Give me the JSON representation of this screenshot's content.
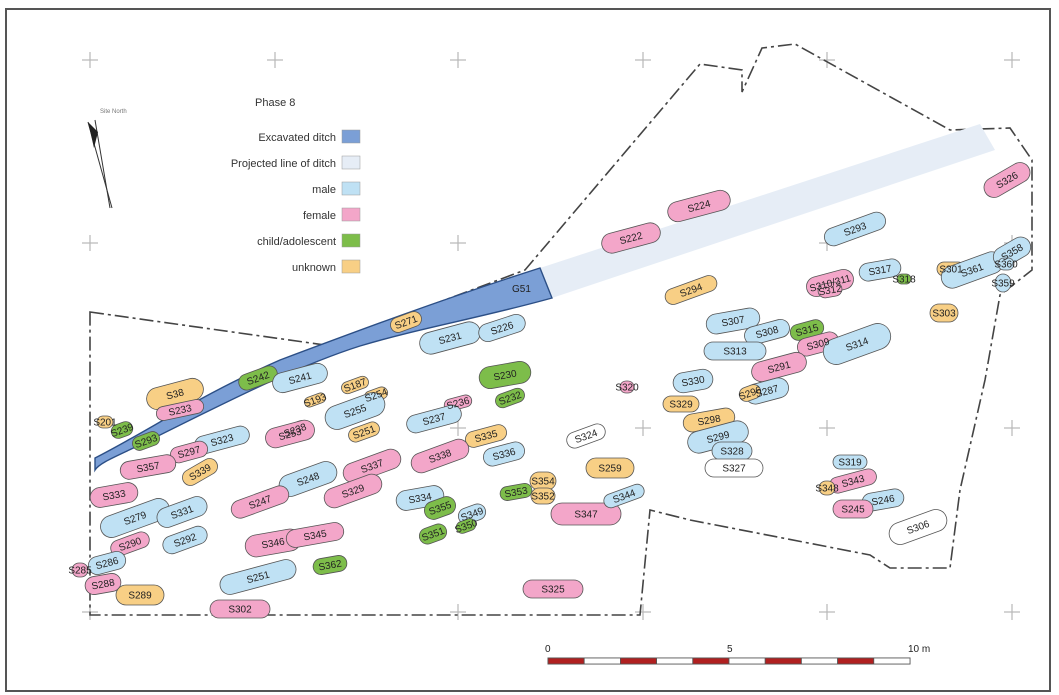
{
  "legend": {
    "title": "Phase 8",
    "items": [
      {
        "label": "Excavated ditch",
        "color": "#7b9fd6"
      },
      {
        "label": "Projected line of ditch",
        "color": "#e6edf6"
      },
      {
        "label": "male",
        "color": "#bfe1f4"
      },
      {
        "label": "female",
        "color": "#f3a6c9"
      },
      {
        "label": "child/adolescent",
        "color": "#7dbd4a"
      },
      {
        "label": "unknown",
        "color": "#f8cf85"
      }
    ]
  },
  "north": {
    "label": "Site North",
    "icon": "north-arrow-icon"
  },
  "ditch_label": "G51",
  "scale": {
    "labels": [
      "0",
      "5",
      "10 m"
    ],
    "colors": [
      "#b02020",
      "#ffffff"
    ]
  },
  "graves": [
    {
      "id": "S201",
      "sex": "unknown"
    },
    {
      "id": "S239",
      "sex": "child/adolescent"
    },
    {
      "id": "S38",
      "sex": "unknown"
    },
    {
      "id": "S233",
      "sex": "female"
    },
    {
      "id": "S242",
      "sex": "child/adolescent"
    },
    {
      "id": "S241",
      "sex": "male"
    },
    {
      "id": "S271",
      "sex": "unknown"
    },
    {
      "id": "S231",
      "sex": "male"
    },
    {
      "id": "S226",
      "sex": "male"
    },
    {
      "id": "S230",
      "sex": "child/adolescent"
    },
    {
      "id": "S187",
      "sex": "unknown"
    },
    {
      "id": "S193",
      "sex": "unknown"
    },
    {
      "id": "S254",
      "sex": "unknown"
    },
    {
      "id": "S255",
      "sex": "male"
    },
    {
      "id": "S236",
      "sex": "female"
    },
    {
      "id": "S232",
      "sex": "child/adolescent"
    },
    {
      "id": "S237",
      "sex": "male"
    },
    {
      "id": "S335",
      "sex": "unknown"
    },
    {
      "id": "S238",
      "sex": "unknown"
    },
    {
      "id": "S253",
      "sex": "female"
    },
    {
      "id": "S251",
      "sex": "unknown"
    },
    {
      "id": "S323",
      "sex": "male"
    },
    {
      "id": "S293",
      "sex": "child/adolescent"
    },
    {
      "id": "S297",
      "sex": "female"
    },
    {
      "id": "S357",
      "sex": "female"
    },
    {
      "id": "S339",
      "sex": "unknown"
    },
    {
      "id": "S248",
      "sex": "male"
    },
    {
      "id": "S337",
      "sex": "female"
    },
    {
      "id": "S338",
      "sex": "female"
    },
    {
      "id": "S336",
      "sex": "male"
    },
    {
      "id": "S334",
      "sex": "male"
    },
    {
      "id": "S247",
      "sex": "female"
    },
    {
      "id": "S329",
      "sex": "female"
    },
    {
      "id": "S279",
      "sex": "male"
    },
    {
      "id": "S331",
      "sex": "male"
    },
    {
      "id": "S333",
      "sex": "female"
    },
    {
      "id": "S355",
      "sex": "child/adolescent"
    },
    {
      "id": "S349",
      "sex": "male"
    },
    {
      "id": "S353",
      "sex": "child/adolescent"
    },
    {
      "id": "S354",
      "sex": "unknown"
    },
    {
      "id": "S352",
      "sex": "unknown"
    },
    {
      "id": "S292",
      "sex": "male"
    },
    {
      "id": "S290",
      "sex": "female"
    },
    {
      "id": "S346",
      "sex": "female"
    },
    {
      "id": "S345",
      "sex": "female"
    },
    {
      "id": "S350",
      "sex": "child/adolescent"
    },
    {
      "id": "S351",
      "sex": "child/adolescent"
    },
    {
      "id": "S362",
      "sex": "child/adolescent"
    },
    {
      "id": "S285",
      "sex": "female"
    },
    {
      "id": "S286",
      "sex": "male"
    },
    {
      "id": "S288",
      "sex": "female"
    },
    {
      "id": "S289",
      "sex": "unknown"
    },
    {
      "id": "S251b",
      "label": "S251",
      "sex": "male"
    },
    {
      "id": "S302",
      "sex": "female"
    },
    {
      "id": "S320",
      "sex": "female"
    },
    {
      "id": "S324",
      "sex": "male"
    },
    {
      "id": "S259",
      "sex": "unknown"
    },
    {
      "id": "S347",
      "sex": "female"
    },
    {
      "id": "S344",
      "sex": "male"
    },
    {
      "id": "S325",
      "sex": "female"
    },
    {
      "id": "S222",
      "sex": "female"
    },
    {
      "id": "S224",
      "sex": "female"
    },
    {
      "id": "S294",
      "sex": "unknown"
    },
    {
      "id": "S307",
      "sex": "male"
    },
    {
      "id": "S308",
      "sex": "male"
    },
    {
      "id": "S315",
      "sex": "child/adolescent"
    },
    {
      "id": "S313",
      "sex": "male"
    },
    {
      "id": "S309",
      "sex": "female"
    },
    {
      "id": "S314",
      "sex": "male"
    },
    {
      "id": "S291",
      "sex": "female"
    },
    {
      "id": "S330",
      "sex": "male"
    },
    {
      "id": "S287",
      "sex": "male"
    },
    {
      "id": "S296",
      "sex": "unknown"
    },
    {
      "id": "S329b",
      "label": "S329",
      "sex": "unknown"
    },
    {
      "id": "S298",
      "sex": "unknown"
    },
    {
      "id": "S299",
      "sex": "male"
    },
    {
      "id": "S328",
      "sex": "male"
    },
    {
      "id": "S327",
      "sex": "male"
    },
    {
      "id": "S293b",
      "label": "S293",
      "sex": "male"
    },
    {
      "id": "S310/311",
      "sex": "female"
    },
    {
      "id": "S312",
      "sex": "female"
    },
    {
      "id": "S317",
      "sex": "male"
    },
    {
      "id": "S318",
      "sex": "child/adolescent"
    },
    {
      "id": "S301",
      "sex": "unknown"
    },
    {
      "id": "S361",
      "sex": "male"
    },
    {
      "id": "S358",
      "sex": "male"
    },
    {
      "id": "S360",
      "sex": "male"
    },
    {
      "id": "S359",
      "sex": "male"
    },
    {
      "id": "S303",
      "sex": "unknown"
    },
    {
      "id": "S326",
      "sex": "female"
    },
    {
      "id": "S319",
      "sex": "male"
    },
    {
      "id": "S343",
      "sex": "female"
    },
    {
      "id": "S348",
      "sex": "unknown"
    },
    {
      "id": "S246",
      "sex": "male"
    },
    {
      "id": "S245",
      "sex": "female"
    },
    {
      "id": "S306",
      "sex": "unknown"
    }
  ]
}
